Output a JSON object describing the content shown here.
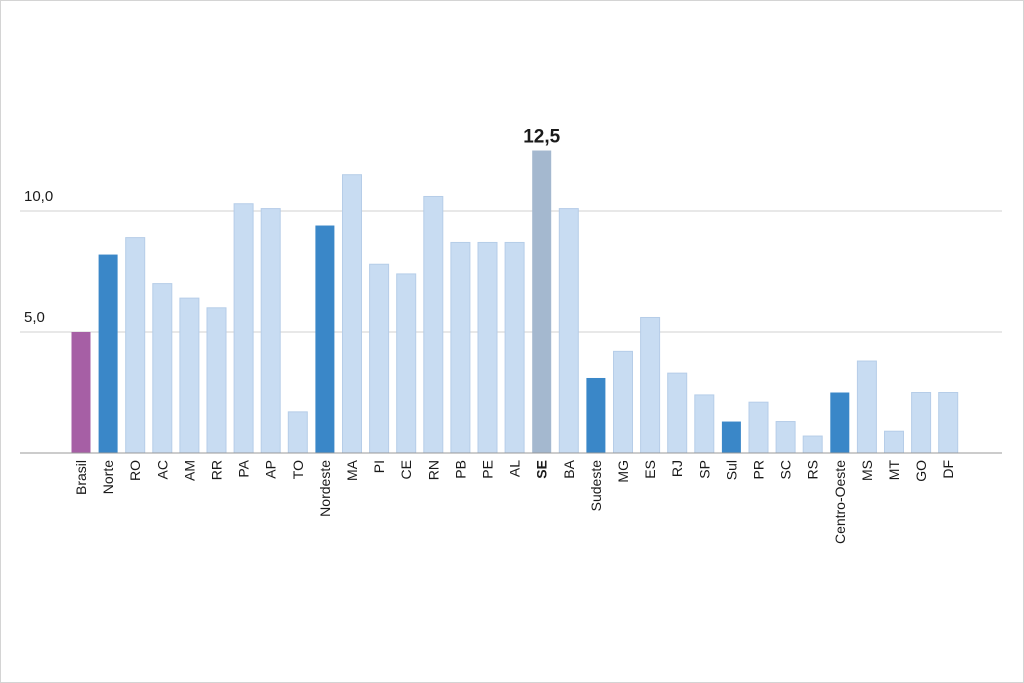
{
  "chart_data": {
    "type": "bar",
    "title": "",
    "xlabel": "",
    "ylabel": "",
    "ylim": [
      0,
      15
    ],
    "yticks": [
      {
        "value": 5,
        "label": "5,0"
      },
      {
        "value": 10,
        "label": "10,0"
      }
    ],
    "grid": true,
    "legend": "none",
    "categories": [
      "Brasil",
      "Norte",
      "RO",
      "AC",
      "AM",
      "RR",
      "PA",
      "AP",
      "TO",
      "Nordeste",
      "MA",
      "PI",
      "CE",
      "RN",
      "PB",
      "PE",
      "AL",
      "SE",
      "BA",
      "Sudeste",
      "MG",
      "ES",
      "RJ",
      "SP",
      "Sul",
      "PR",
      "SC",
      "RS",
      "Centro-Oeste",
      "MS",
      "MT",
      "GO",
      "DF"
    ],
    "values": [
      5.0,
      8.2,
      8.9,
      7.0,
      6.4,
      6.0,
      10.3,
      10.1,
      1.7,
      9.4,
      11.5,
      7.8,
      7.4,
      10.6,
      8.7,
      8.7,
      8.7,
      12.5,
      10.1,
      3.1,
      4.2,
      5.6,
      3.3,
      2.4,
      1.3,
      2.1,
      1.3,
      0.7,
      2.5,
      3.8,
      0.9,
      2.5,
      2.5
    ],
    "levels": [
      "country",
      "region",
      "state",
      "state",
      "state",
      "state",
      "state",
      "state",
      "state",
      "region",
      "state",
      "state",
      "state",
      "state",
      "state",
      "state",
      "state",
      "highlight",
      "state",
      "region",
      "state",
      "state",
      "state",
      "state",
      "region",
      "state",
      "state",
      "state",
      "region",
      "state",
      "state",
      "state",
      "state"
    ],
    "data_labels": [
      {
        "category": "SE",
        "text": "12,5"
      }
    ],
    "bold_categories": [
      "SE"
    ],
    "colors": {
      "country": "#a65fa5",
      "region": "#3a87c8",
      "state": "#c8dcf2",
      "highlight": "#a4b8cf",
      "grid": "#d0d0d0",
      "axis": "#999999"
    }
  }
}
